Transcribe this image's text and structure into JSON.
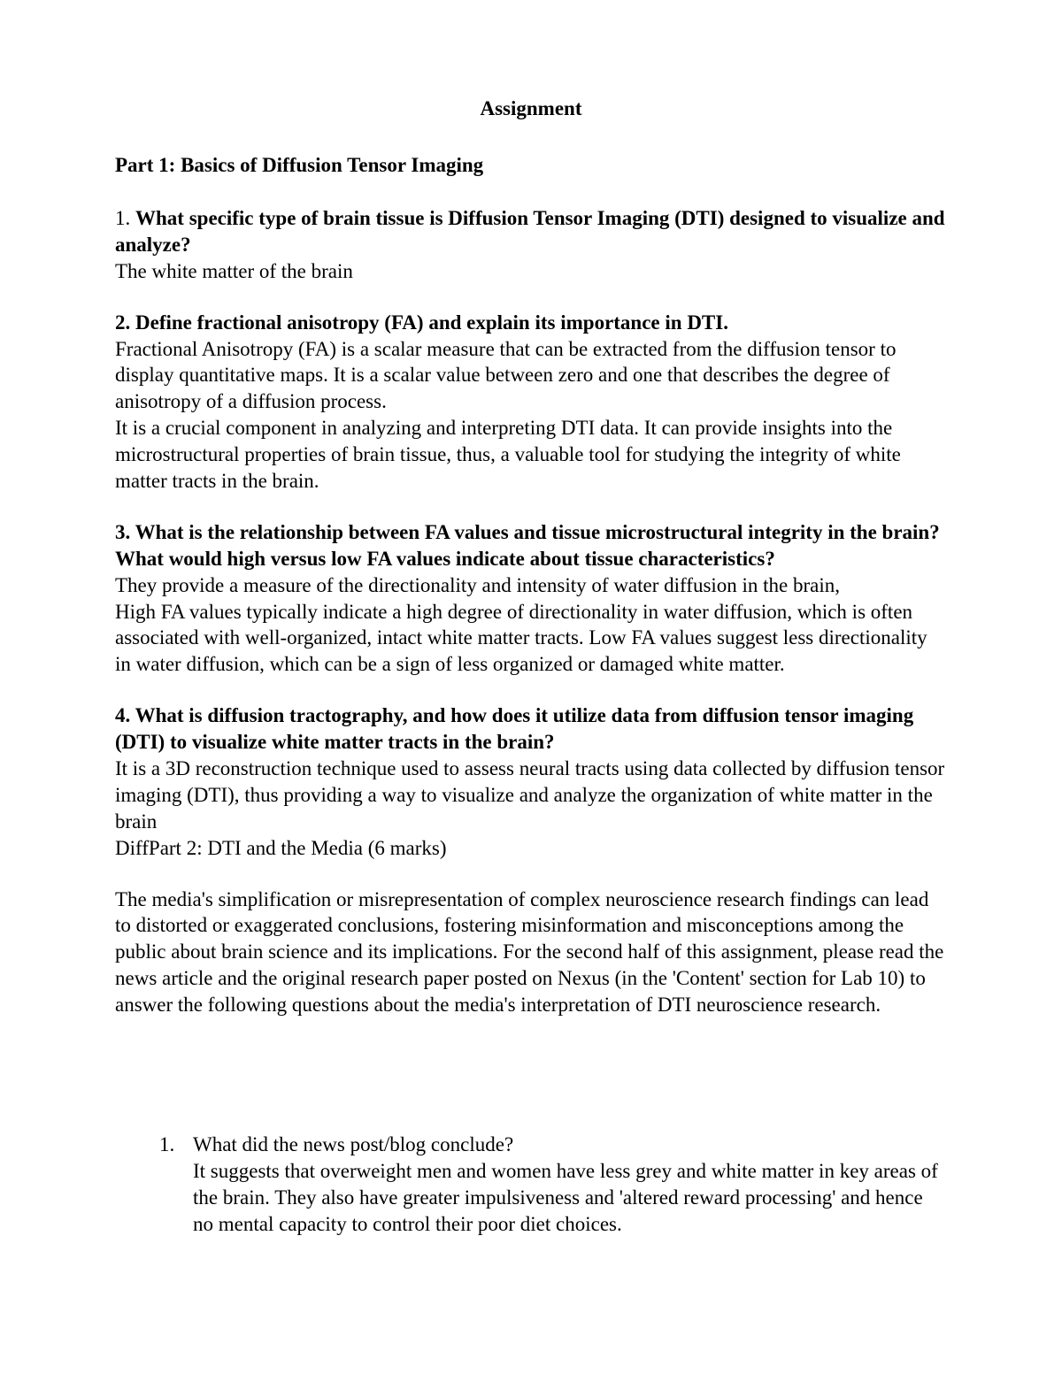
{
  "title": "Assignment",
  "part1_heading": "Part 1: Basics of Diffusion Tensor Imaging",
  "q1": {
    "num": "1. ",
    "question": "What specific type of brain tissue is Diffusion Tensor Imaging (DTI) designed to visualize and analyze?",
    "answer": "The white matter of the brain"
  },
  "q2": {
    "question": "2. Define fractional anisotropy (FA) and explain its importance in DTI.",
    "answer_p1": "Fractional Anisotropy (FA) is a scalar measure that can be extracted from the diffusion tensor to display quantitative maps. It is a scalar value between zero and one that describes the degree of anisotropy of a diffusion process.",
    "answer_p2": "It is a crucial component in analyzing and interpreting DTI data. It can provide insights into the microstructural properties of brain tissue, thus, a valuable tool for studying the integrity of white matter tracts in the brain."
  },
  "q3": {
    "question": "3. What is the relationship between FA values and tissue microstructural integrity in the brain? What would high versus low FA values indicate about tissue characteristics?",
    "answer_p1": "They provide a measure of the directionality and intensity of water diffusion in the brain,",
    "answer_p2": "High FA values typically indicate a high degree of directionality in water diffusion, which is often associated with well-organized, intact white matter tracts. Low FA values suggest less directionality in water diffusion, which can be a sign of less organized or damaged white matter."
  },
  "q4": {
    "question": "4. What is diffusion tractography, and how does it utilize data from diffusion tensor imaging (DTI) to visualize white matter tracts in the brain?",
    "answer_p1": " It is a 3D reconstruction technique used to assess neural tracts using data collected by diffusion tensor imaging (DTI), thus providing a way to visualize and analyze the organization of white matter in the brain",
    "answer_p2": "DiffPart 2: DTI and the Media (6 marks)"
  },
  "intro_para": "The media's simplification or misrepresentation of complex neuroscience research findings can lead to distorted or exaggerated conclusions, fostering misinformation and misconceptions among the public about brain science and its implications. For the second half of this assignment, please read the news article and the original research paper posted on Nexus (in the 'Content' section for Lab 10) to answer the following questions about the media's interpretation of DTI neuroscience research.",
  "ol1": {
    "num": "1.",
    "question": "What did the news post/blog conclude?",
    "answer": "It suggests that overweight men and women have less grey and white matter in key areas of the brain. They also have greater impulsiveness and 'altered reward processing' and hence no mental capacity to control their poor diet choices."
  }
}
